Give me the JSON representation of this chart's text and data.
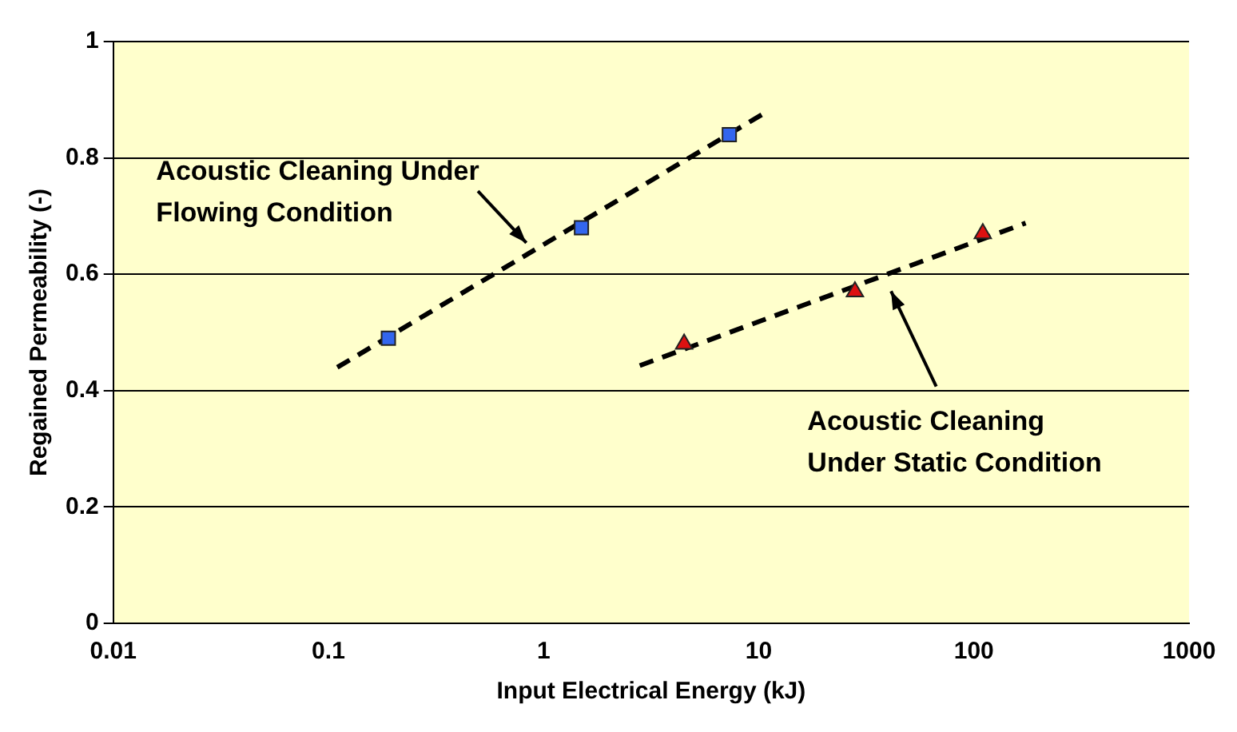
{
  "chart_data": {
    "type": "scatter",
    "xlabel": "Input Electrical Energy (kJ)",
    "ylabel": "Regained Permeability (-)",
    "log": "x",
    "grid": "y",
    "legend": false,
    "xlim": [
      0.01,
      1000
    ],
    "xticks": [
      0.01,
      0.1,
      1,
      10,
      100,
      1000
    ],
    "ylim": [
      0,
      1
    ],
    "yticks": [
      0,
      0.2,
      0.4,
      0.6,
      0.8,
      1
    ],
    "series": [
      {
        "color": "#3366ee",
        "marker": "square",
        "x": [
          0.19,
          1.5,
          7.3
        ],
        "values": [
          0.49,
          0.68,
          0.84
        ]
      },
      {
        "color": "#dd1111",
        "marker": "triangle",
        "x": [
          4.5,
          28,
          110
        ],
        "values": [
          0.48,
          0.57,
          0.67
        ]
      },
      {
        "type": "line",
        "color": "#000000",
        "marker": "none",
        "line_style": "dashed",
        "x": [
          0.11,
          10.4
        ],
        "values": [
          0.44,
          0.875
        ]
      },
      {
        "type": "line",
        "color": "#000000",
        "marker": "none",
        "line_style": "dashed",
        "x": [
          2.8,
          174
        ],
        "values": [
          0.443,
          0.688
        ]
      }
    ],
    "annotations": [
      "Acoustic Cleaning Under\nFlowing Condition",
      "Acoustic Cleaning\nUnder Static Condition"
    ]
  }
}
